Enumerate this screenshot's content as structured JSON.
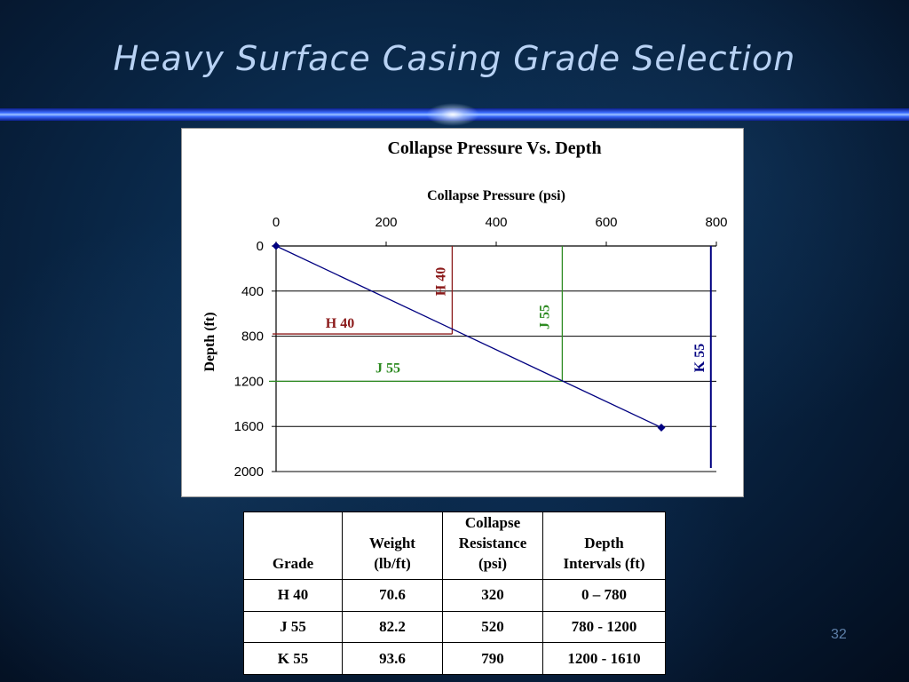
{
  "slide": {
    "title": "Heavy Surface Casing Grade Selection",
    "page_number": "32"
  },
  "chart_data": {
    "type": "line",
    "title": "Collapse Pressure Vs. Depth",
    "xlabel": "Collapse Pressure (psi)",
    "ylabel": "Depth (ft)",
    "xlim": [
      0,
      800
    ],
    "ylim": [
      0,
      2000
    ],
    "x_axis_position": "top",
    "y_axis_inverted": true,
    "x_ticks": [
      0,
      200,
      400,
      600,
      800
    ],
    "y_ticks": [
      0,
      400,
      800,
      1200,
      1600,
      2000
    ],
    "grid": "horizontal",
    "line_color": "#000080",
    "series": [
      {
        "points": [
          [
            0,
            0
          ],
          [
            700,
            1610
          ]
        ],
        "color": "#000080"
      }
    ],
    "grade_lines": [
      {
        "label": "H 40",
        "pressure": 320,
        "depth": 780,
        "color": "#8b1a1a"
      },
      {
        "label": "J 55",
        "pressure": 520,
        "depth": 1200,
        "color": "#2e8b22"
      },
      {
        "label": "K 55",
        "pressure": 790,
        "depth": null,
        "color": "#000080"
      }
    ]
  },
  "table": {
    "headers": [
      [
        "Grade"
      ],
      [
        "Weight",
        "(lb/ft)"
      ],
      [
        "Collapse",
        "Resistance",
        "(psi)"
      ],
      [
        "Depth",
        "Intervals (ft)"
      ]
    ],
    "rows": [
      [
        "H 40",
        "70.6",
        "320",
        "0 – 780"
      ],
      [
        "J 55",
        "82.2",
        "520",
        "780 - 1200"
      ],
      [
        "K 55",
        "93.6",
        "790",
        "1200 - 1610"
      ]
    ]
  }
}
